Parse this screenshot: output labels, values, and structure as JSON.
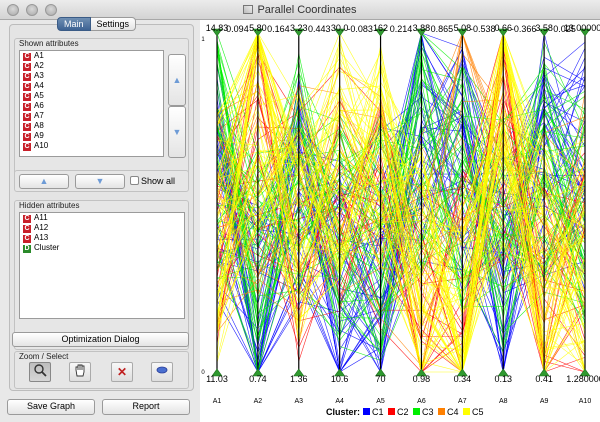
{
  "window": {
    "title": "Parallel Coordinates"
  },
  "tabs": [
    {
      "label": "Main",
      "active": true
    },
    {
      "label": "Settings",
      "active": false
    }
  ],
  "shown_attributes": {
    "label": "Shown attributes",
    "items": [
      {
        "type": "C",
        "name": "A1"
      },
      {
        "type": "C",
        "name": "A2"
      },
      {
        "type": "C",
        "name": "A3"
      },
      {
        "type": "C",
        "name": "A4"
      },
      {
        "type": "C",
        "name": "A5"
      },
      {
        "type": "C",
        "name": "A6"
      },
      {
        "type": "C",
        "name": "A7"
      },
      {
        "type": "C",
        "name": "A8"
      },
      {
        "type": "C",
        "name": "A9"
      },
      {
        "type": "C",
        "name": "A10"
      }
    ],
    "show_all_label": "Show all"
  },
  "hidden_attributes": {
    "label": "Hidden attributes",
    "items": [
      {
        "type": "C",
        "name": "A11"
      },
      {
        "type": "C",
        "name": "A12"
      },
      {
        "type": "C",
        "name": "A13"
      },
      {
        "type": "D",
        "name": "Cluster"
      }
    ]
  },
  "optimization_button": "Optimization Dialog",
  "zoom_select": {
    "label": "Zoom / Select",
    "tools": [
      "zoom-icon",
      "hand-icon",
      "clear-selection-icon",
      "lasso-icon"
    ]
  },
  "bottom_buttons": {
    "save": "Save Graph",
    "report": "Report"
  },
  "colors": {
    "C1": "#0000ff",
    "C2": "#ff0000",
    "C3": "#00ee00",
    "C4": "#ff8000",
    "C5": "#ffff00",
    "axis_marker": "#2f9a2f",
    "tab_active": "#4a6fa0"
  },
  "chart_data": {
    "type": "parallel-coordinates",
    "axes": [
      {
        "name": "A1",
        "max_label": "14.83",
        "min_label": "11.03"
      },
      {
        "name": "A2",
        "max_label": "5.80",
        "min_label": "0.74"
      },
      {
        "name": "A3",
        "max_label": "3.23",
        "min_label": "1.36"
      },
      {
        "name": "A4",
        "max_label": "30.0",
        "min_label": "10.6"
      },
      {
        "name": "A5",
        "max_label": "162",
        "min_label": "70"
      },
      {
        "name": "A6",
        "max_label": "3.88",
        "min_label": "0.98"
      },
      {
        "name": "A7",
        "max_label": "5.08",
        "min_label": "0.34"
      },
      {
        "name": "A8",
        "max_label": "0.66",
        "min_label": "0.13"
      },
      {
        "name": "A9",
        "max_label": "3.58",
        "min_label": "0.41"
      },
      {
        "name": "A10",
        "max_label": "13.000000",
        "min_label": "1.280000"
      }
    ],
    "top_extra_labels": [
      "0.094",
      "0.164",
      "0.443",
      "-0.083",
      "0.214",
      "0.865",
      "-0.538",
      "-0.366",
      "0.025"
    ],
    "left_tick_labels": {
      "top": "1",
      "bottom": "0"
    },
    "legend": {
      "title": "Cluster:",
      "entries": [
        "C1",
        "C2",
        "C3",
        "C4",
        "C5"
      ]
    }
  }
}
